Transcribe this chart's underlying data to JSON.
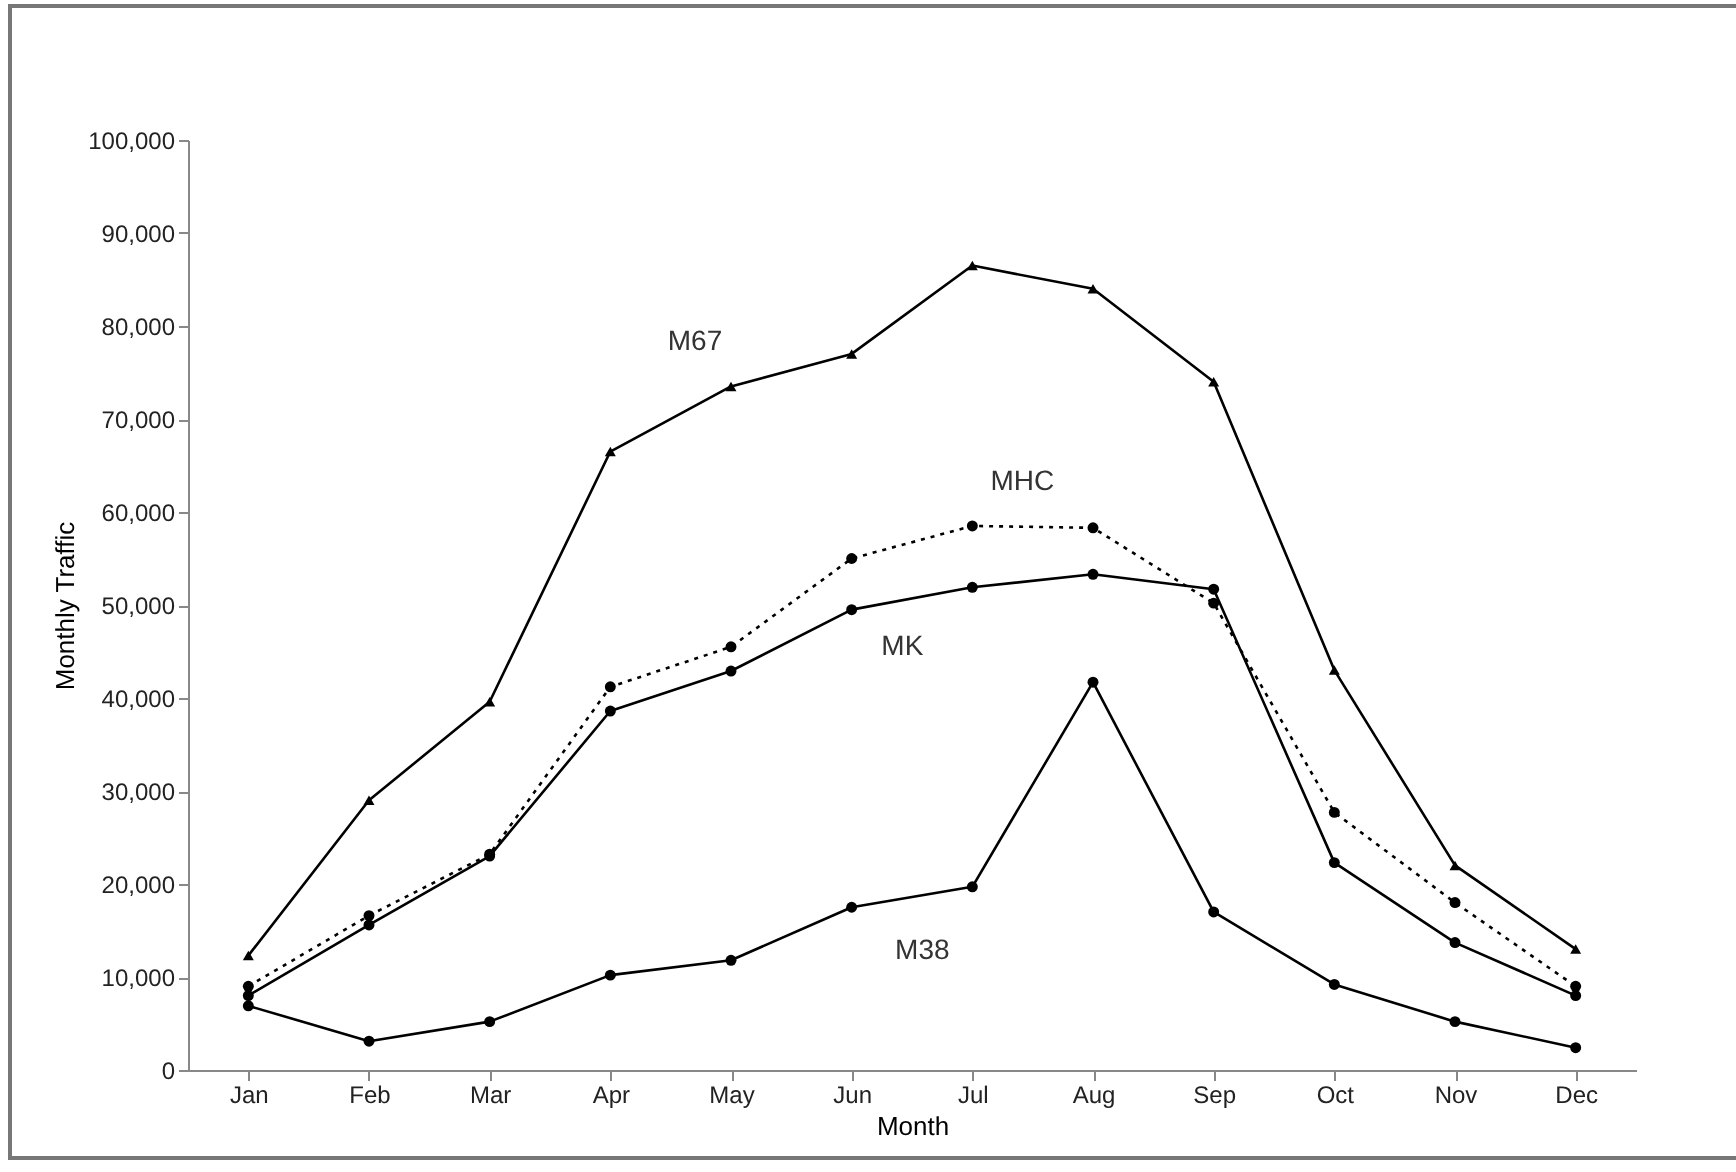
{
  "chart_data": {
    "type": "line",
    "xlabel": "Month",
    "ylabel": "Monthly Traffic",
    "categories": [
      "Jan",
      "Feb",
      "Mar",
      "Apr",
      "May",
      "Jun",
      "Jul",
      "Aug",
      "Sep",
      "Oct",
      "Nov",
      "Dec"
    ],
    "ylim": [
      0,
      100000
    ],
    "yticks": [
      0,
      {
        "value": 10000,
        "label": "10,000"
      },
      {
        "value": 20000,
        "label": "20,000"
      },
      {
        "value": 30000,
        "label": "30,000"
      },
      {
        "value": 40000,
        "label": "40,000"
      },
      {
        "value": 50000,
        "label": "50,000"
      },
      {
        "value": 60000,
        "label": "60,000"
      },
      {
        "value": 70000,
        "label": "70,000"
      },
      {
        "value": 80000,
        "label": "80,000"
      },
      {
        "value": 90000,
        "label": "90,000"
      },
      {
        "value": 100000,
        "label": "100,000"
      }
    ],
    "marker": "circle",
    "grid": false,
    "series": [
      {
        "name": "M67",
        "color": "#000000",
        "marker": "triangle",
        "values": [
          12300,
          29000,
          39600,
          66500,
          73500,
          77000,
          86500,
          84000,
          74000,
          43000,
          22000,
          13000
        ]
      },
      {
        "name": "MHC",
        "color": "#000000",
        "line_style": "dotted",
        "values": [
          9000,
          16600,
          23200,
          41200,
          45500,
          55000,
          58500,
          58300,
          50200,
          27700,
          18000,
          9000
        ]
      },
      {
        "name": "MK",
        "color": "#000000",
        "values": [
          8000,
          15600,
          23000,
          38600,
          42900,
          49500,
          51900,
          53300,
          51700,
          22300,
          13700,
          8000
        ]
      },
      {
        "name": "M38",
        "color": "#000000",
        "values": [
          6900,
          3100,
          5200,
          10200,
          11800,
          17500,
          19700,
          41700,
          17000,
          9200,
          5200,
          2400
        ]
      }
    ]
  }
}
